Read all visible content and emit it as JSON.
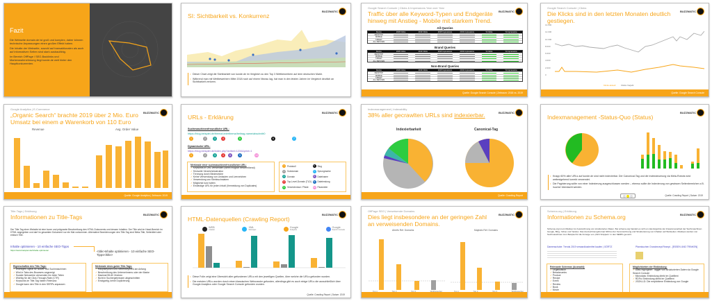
{
  "brand": {
    "logo_text": "BUZZMATIC",
    "accent": "#f7a519"
  },
  "slides": [
    {
      "title": "Fazit",
      "bullets": [
        "Die Webseite domain.de ist groß und komplex, daher können technische Anpassungen einen großen Effekt haben.",
        "Die Inhalte der Webseite, sowohl auf transaktionalen als auch auf informativen Seiten sind stark ausbaufähig.",
        "Im Bereich OffPage / SEO-Backlinks und Markenwahrnehmung liegt kunde.de weit hinter den Hauptkonkurrenten."
      ]
    },
    {
      "title": "SI: Sichtbarkeit vs. Konkurrenz",
      "bullets": [
        "Dieser Chart zeigt die Sichtbarkeit von kunde.de im Vergleich zu den Top 3 Wettbewerbern auf dem deutschen Markt.",
        "Während man mit Wettbewerbern Mitte 2018 noch auf einem Niveau lag, hat man in den letzten Jahren im Vergleich deutlich an Sichtbarkeit verloren."
      ]
    },
    {
      "kicker": "Google Search Console | Clicks & Impressions Year over Year",
      "title": "Traffic über alle Keyword-Typen und Endgeräte hinweg mit Anstieg - Mobile mit starkem Trend.",
      "tables": [
        "All Queries",
        "Brand Queries",
        "Non-Brand Queries"
      ],
      "columns": [
        "Device",
        "2018 Clicks",
        "2019 Clicks",
        "2018 Impressions",
        "2019 Impressions",
        "% Clicks",
        "% Impressions"
      ],
      "devices": [
        "DESKTOP",
        "MOBILE",
        "TABLET",
        "ALL DEVICES"
      ],
      "footer": "Quelle: Google Search Console | Zeitraum: 2018 vs. 2019"
    },
    {
      "kicker": "Google Search Console | Clicks",
      "title": "Die Klicks sind in den letzten Monaten deutlich gestiegen.",
      "y_ticks": [
        "14.000",
        "12.000",
        "10.000",
        "8.000",
        "6.000",
        "4.000",
        "2.000",
        "0"
      ],
      "legend": [
        "Klicks aktuell",
        "Klicks Vorjahr"
      ],
      "footer": "Quelle: Google Search Console"
    },
    {
      "kicker": "Google Analytics | E-Commerce",
      "title": "„Organic Search“ brachte 2019 über 2 Mio. Euro Umsatz bei einem ⌀ Warenkorb von 110 Euro",
      "charts": [
        "Revenue",
        "Avg. Order Value"
      ],
      "footer": "Quelle: Google Analytics | Zeitraum: 2019"
    },
    {
      "title": "URLs - Erklärung",
      "seo_url_label": "Suchmaschinenfreundliche URL:",
      "seo_url": "https://blog.beispiel.de/thema/unterthema/beitrag-name/abschnitt0",
      "dyn_url_label": "Dynamische URL:",
      "dyn_url": "https://blog.beispiel.de/index.php?artikel=1234&print=1",
      "box_title": "Merkmale einer suchmaschinenfreundlichen URL:",
      "box_items": [
        "Keywords in URL verwenden (wenn möglich beschreibend)",
        "Sinnvolle Verzeichnisstruktur",
        "Trennung durch Bindestriche",
        "Keine Verwendung von Umlauten und Leerzeichen",
        "Verwendung von Kleinbuchstaben",
        "Möglichst kurz halten",
        "Eindeutige URL für jeden Inhalt (Vermeidung von Duplicates)"
      ],
      "legend": [
        "Protokoll",
        "Subdomain",
        "Domain",
        "Top-Level-Domain (TLD)",
        "Verzeichnisse / Pfade",
        "Slug",
        "Sprungmarke",
        "Dateiname",
        "Dateiendung",
        "Parameter"
      ],
      "legend_colors": [
        "#f7a519",
        "#9e9e9e",
        "#17a398",
        "#e53935",
        "#2ecc40",
        "#111111",
        "#29b6f6",
        "#7e57c2",
        "#1e6fc0",
        "#f48fd8"
      ]
    },
    {
      "kicker": "Indexmanagement | Indexability",
      "title_pre": "38% aller gecrawlten URLs sind ",
      "title_link": "indexierbar.",
      "pies": [
        "Indexierbarkeit",
        "Canonical-Tag"
      ],
      "footer": "Quelle: Crawling Report"
    },
    {
      "title": "Indexmanagement -Status-Quo (Status)",
      "bullets": [
        "Knapp 60% aller URLs auf kunde.de sind nicht indexierbar. Der Canonical-Tag und die Indexsteuerung via Meta-Robots wird weitestgehend korrekt verwendet.",
        "Die Paginierung sollte von einer Indexierung ausgeschlossen werden – ebenso sollte die Indexierung von gewissen Seitenbereichen z.B. /suche/ überdacht werden."
      ],
      "footer": "Quelle: Crawling Report | Datum: 2019"
    },
    {
      "kicker": "Title-Tags | Erklärung",
      "title": "Informationen zu Title-Tags",
      "intro": "Der Title-Tag einer Website ist eine kurze und prägnante Beschreibung des HTML-Dokuments und dessen Inhalten. Der Title wird im Head-Bereich im HTML angegeben und darf im gesamten Dokument nur ein Mal vorkommen. Alternative Bezeichnungen des Title-Tag sind Meta-Title, Seitentitel oder einfach Title.",
      "serp_title": "Inhalte optimieren - 10 einfache SEO-Tipps",
      "serp_url": "https://www.beispiel.de/inhalte-optimieren",
      "code": "<title>Inhalte optimieren - 10 einfache SEO-Tipps</title>",
      "box1_title": "Eigenschaften des Title-Tags:",
      "box1_items": [
        "Wichtiges Signal für Nutzer und Suchmaschinen",
        "Wird in Tabs des Browsers angezeigt",
        "Soziale Netzwerke verwenden ihn beim Teilen",
        "Wichtig für die Click-Through-Rate (CTR)",
        "Keywords im Title-Tag haben Relevanz",
        "Google kann den Title in den SERPs anpassen"
      ],
      "box2_title": "Merkmale eines guten Title-Tags:",
      "box2_items": [
        "Hauptkeyword und Nebenkeyword am Anfang",
        "Beschreibung des Unternehmens oder der Marke",
        "Maximal 55-60 Zeichen",
        "Nicht in Suchergebnissen abgeschnitten",
        "Einzigartig, keine Duplizierung"
      ]
    },
    {
      "title": "HTML-Datenquellen (Crawling Report)",
      "sources": [
        {
          "name": "WEB",
          "sub": "Crawler"
        },
        {
          "name": "XML",
          "sub": "Sitemaps"
        },
        {
          "name": "Google",
          "sub": "Analytics"
        },
        {
          "name": "Google",
          "sub": "Search Console"
        }
      ],
      "bullets": [
        "Diese Folie zeigt eine Übersicht aller gefundenen URLs mit den jeweiligen Quellen, über welche die URLs gefunden wurden.",
        "Die meisten URLs wurden durch einen klassischen Webcrawler gefunden, allerdings gibt es auch einige URLs die ausschließlich über Google Analytics oder Google Search Console gefunden wurden."
      ],
      "footer": "Quelle: Crawling Report | Datum: 2019"
    },
    {
      "kicker": "OffPage SEO | Verweisende Domains",
      "title": "Dies liegt insbesondere an der geringen Zahl an verweisenden Domains.",
      "charts": [
        "Ahrefs Ref. Domains",
        "Majestic Ref. Domains"
      ],
      "x_labels": [
        "Top 1",
        "Top 2",
        "Top 3",
        "Wettbewerber"
      ]
    },
    {
      "kicker": "Schema.org | Erklärung",
      "title": "Informationen zu Schema.org",
      "intro": "Schema.org ist ein Markup zur Auszeichnung von strukturierten Daten. Bei schema.org handelt es sich um das Ergebnis der Zusammenarbeit der Suchmaschinen Google, Bing, Yahoo und Yandex. Das Auszeichnungsformat hilft bei der Kennzeichnung und Strukturierung von Inhalten auf Webseiten. Markups werden von Suchmaschinen zum Beispiel für die Anzeige von „Rich Snippets“ in den SERPs genutzt.",
      "serp1": "Damenschuhe: Trends 2019 versandkostenfrei kaufen | GÖRTZ",
      "serp2": "Pfannkuchen Grundrezept Rezept - [ESSEN UND TRINKEN]",
      "box1_title": "Relevante Schemas (Auswahl):",
      "box1_items": [
        "Organization",
        "Breadcrumbs",
        "Product",
        "Recipe",
        "Event",
        "Review",
        "Book",
        "Movie"
      ],
      "box2_title": "Möglichkeiten der Einbindung:",
      "box2_items": [
        "Data-Highlighter: Tagger von strukturierten Daten via Google Search Console",
        "Microdata: Einbindung direkt im Quelltext",
        "RDFa: Einbindung direkt im Quelltext",
        "JSON-LD: Die empfohlene Einbindung von Google"
      ]
    }
  ]
}
